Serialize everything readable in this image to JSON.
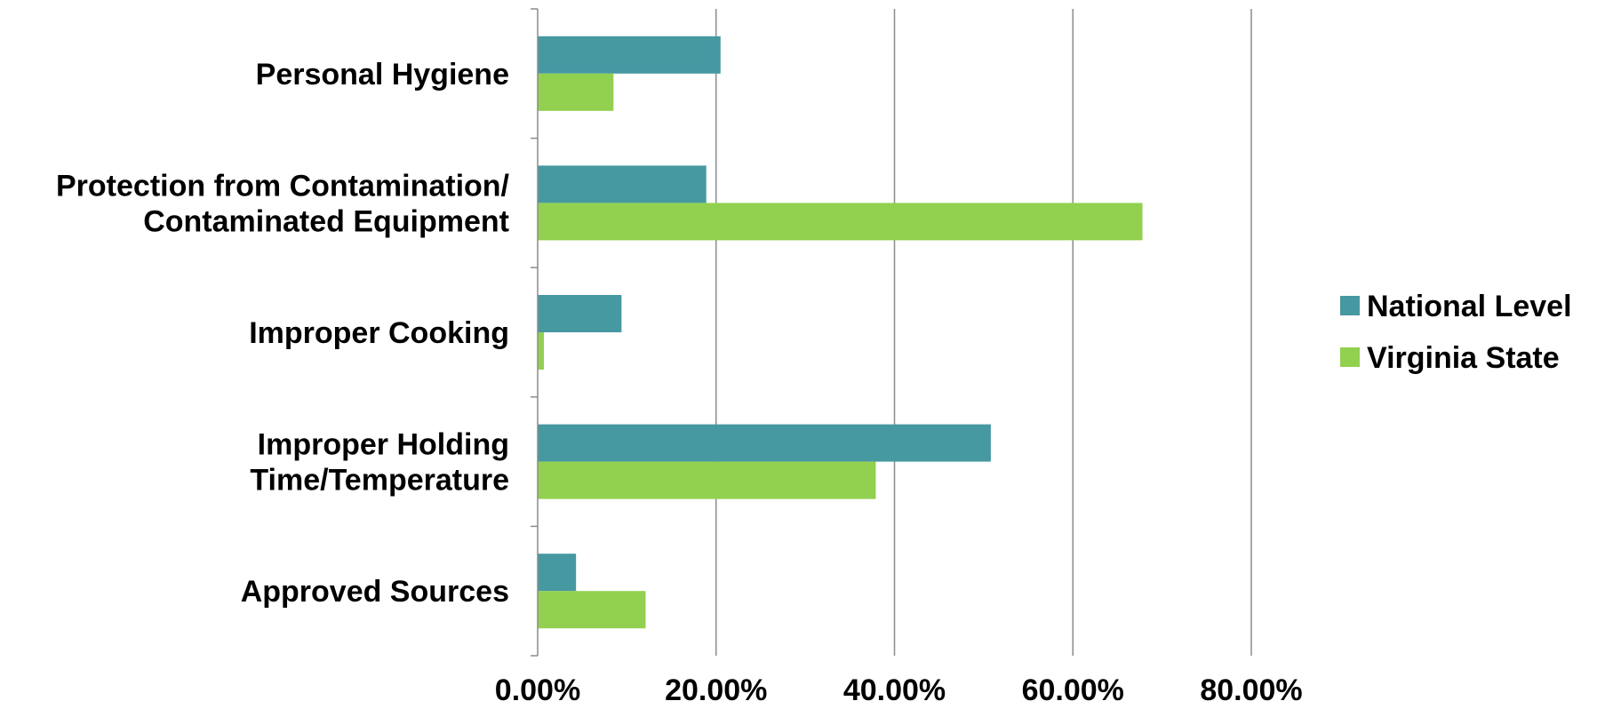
{
  "chart_data": {
    "type": "bar",
    "orientation": "horizontal",
    "categories": [
      [
        "Personal Hygiene"
      ],
      [
        "Protection from Contamination/",
        "Contaminated Equipment"
      ],
      [
        "Improper Cooking"
      ],
      [
        "Improper Holding",
        "Time/Temperature"
      ],
      [
        "Approved Sources"
      ]
    ],
    "series": [
      {
        "name": "National Level",
        "color": "#4698a1",
        "values": [
          0.205,
          0.189,
          0.094,
          0.508,
          0.043
        ]
      },
      {
        "name": "Virginia State",
        "color": "#92d050",
        "values": [
          0.085,
          0.678,
          0.007,
          0.379,
          0.121
        ]
      }
    ],
    "xlim": [
      0,
      0.8
    ],
    "x_ticks": [
      0,
      0.2,
      0.4,
      0.6,
      0.8
    ],
    "x_tick_labels": [
      "0.00%",
      "20.00%",
      "40.00%",
      "60.00%",
      "80.00%"
    ],
    "grid": "vertical",
    "legend_position": "right"
  }
}
